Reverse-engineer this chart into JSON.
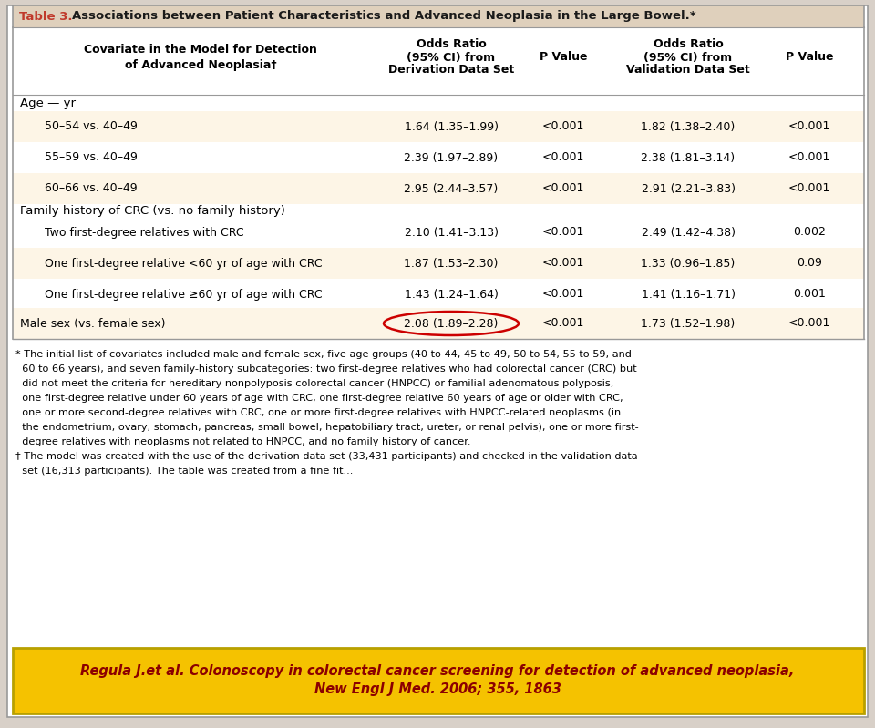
{
  "title_prefix": "Table 3.",
  "title_rest": " Associations between Patient Characteristics and Advanced Neoplasia in the Large Bowel.*",
  "title_color_prefix": "#c0392b",
  "title_color_rest": "#1a1a1a",
  "header_bg": "#dfd0bc",
  "table_bg": "#fdf5e6",
  "row_alt_bg": "#ffffff",
  "outer_bg": "#d8d0c8",
  "table_border": "#aaaaaa",
  "rows": [
    {
      "covariate": "50–54 vs. 40–49",
      "or_deriv": "1.64 (1.35–1.99)",
      "p_deriv": "<0.001",
      "or_valid": "1.82 (1.38–2.40)",
      "p_valid": "<0.001",
      "shade": true,
      "indent": true
    },
    {
      "covariate": "55–59 vs. 40–49",
      "or_deriv": "2.39 (1.97–2.89)",
      "p_deriv": "<0.001",
      "or_valid": "2.38 (1.81–3.14)",
      "p_valid": "<0.001",
      "shade": false,
      "indent": true
    },
    {
      "covariate": "60–66 vs. 40–49",
      "or_deriv": "2.95 (2.44–3.57)",
      "p_deriv": "<0.001",
      "or_valid": "2.91 (2.21–3.83)",
      "p_valid": "<0.001",
      "shade": true,
      "indent": true
    },
    {
      "covariate": "Two first-degree relatives with CRC",
      "or_deriv": "2.10 (1.41–3.13)",
      "p_deriv": "<0.001",
      "or_valid": "2.49 (1.42–4.38)",
      "p_valid": "0.002",
      "shade": false,
      "indent": true
    },
    {
      "covariate": "One first-degree relative <60 yr of age with CRC",
      "or_deriv": "1.87 (1.53–2.30)",
      "p_deriv": "<0.001",
      "or_valid": "1.33 (0.96–1.85)",
      "p_valid": "0.09",
      "shade": true,
      "indent": true
    },
    {
      "covariate": "One first-degree relative ≥60 yr of age with CRC",
      "or_deriv": "1.43 (1.24–1.64)",
      "p_deriv": "<0.001",
      "or_valid": "1.41 (1.16–1.71)",
      "p_valid": "0.001",
      "shade": false,
      "indent": true
    },
    {
      "covariate": "Male sex (vs. female sex)",
      "or_deriv": "2.08 (1.89–2.28)",
      "p_deriv": "<0.001",
      "or_valid": "1.73 (1.52–1.98)",
      "p_valid": "<0.001",
      "shade": true,
      "indent": false,
      "circle": true
    }
  ],
  "footnote_lines": [
    "* The initial list of covariates included male and female sex, five age groups (40 to 44, 45 to 49, 50 to 54, 55 to 59, and",
    "  60 to 66 years), and seven family-history subcategories: two first-degree relatives who had colorectal cancer (CRC) but",
    "  did not meet the criteria for hereditary nonpolyposis colorectal cancer (HNPCC) or familial adenomatous polyposis,",
    "  one first-degree relative under 60 years of age with CRC, one first-degree relative 60 years of age or older with CRC,",
    "  one or more second-degree relatives with CRC, one or more first-degree relatives with HNPCC-related neoplasms (in",
    "  the endometrium, ovary, stomach, pancreas, small bowel, hepatobiliary tract, ureter, or renal pelvis), one or more first-",
    "  degree relatives with neoplasms not related to HNPCC, and no family history of cancer.",
    "† The model was created with the use of the derivation data set (33,431 participants) and checked in the validation data",
    "  set (16,313 participants). The table was created from a fine fit..."
  ],
  "citation": "Regula J.et al. Colonoscopy in colorectal cancer screening for detection of advanced neoplasia,\nNew Engl J Med. 2006; 355, 1863",
  "citation_bg": "#f5c200",
  "citation_color": "#8b0000",
  "citation_border": "#b8a000"
}
